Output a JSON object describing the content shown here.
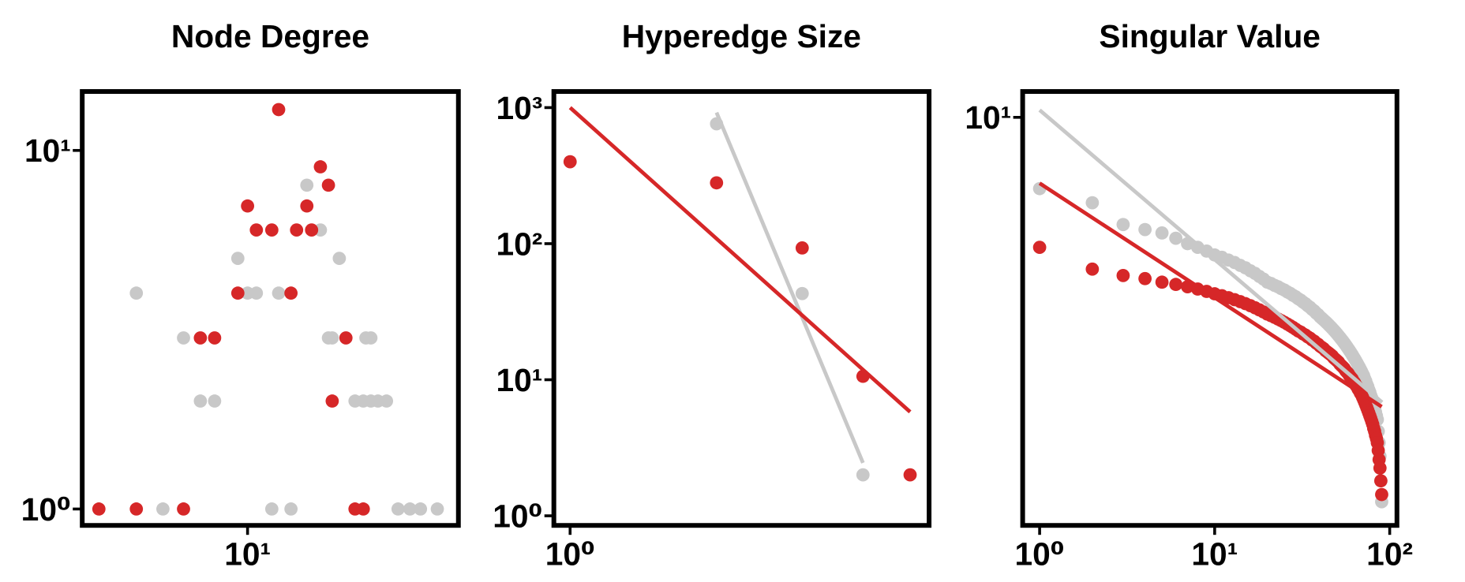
{
  "chart_data": [
    {
      "type": "scatter",
      "title": "Node Degree",
      "log_x": true,
      "log_y": true,
      "xlim": [
        1.67,
        98
      ],
      "ylim": [
        0.9,
        14.6
      ],
      "xticks": [
        {
          "value": 10,
          "label": "10¹"
        }
      ],
      "yticks": [
        {
          "value": 1,
          "label": "10⁰"
        },
        {
          "value": 10,
          "label": "10¹"
        }
      ],
      "series": [
        {
          "style": "marker",
          "color": "#c8c8c8",
          "x": [
            3,
            4,
            5,
            6,
            7,
            9,
            10,
            11,
            13,
            16,
            14,
            19,
            22,
            24,
            25,
            27,
            32,
            35,
            36,
            38,
            38,
            41,
            45,
            51,
            58,
            65,
            78
          ],
          "values": [
            4,
            1,
            3,
            2,
            2,
            5,
            4,
            4,
            1,
            1,
            4,
            8,
            6,
            3,
            3,
            5,
            2,
            2,
            3,
            3,
            2,
            2,
            2,
            1,
            1,
            1,
            1
          ]
        },
        {
          "style": "marker",
          "color": "#d62728",
          "x": [
            2,
            3,
            5,
            6,
            7,
            9,
            10,
            11,
            13,
            14,
            16,
            17,
            19,
            20,
            22,
            24,
            25,
            29,
            32,
            35
          ],
          "values": [
            1,
            1,
            1,
            3,
            3,
            4,
            7,
            6,
            6,
            13,
            4,
            6,
            7,
            6,
            9,
            8,
            2,
            3,
            1,
            1
          ]
        }
      ]
    },
    {
      "type": "scatter",
      "title": "Hyperedge Size",
      "log_x": true,
      "log_y": true,
      "xlim": [
        0.926,
        5.47
      ],
      "ylim": [
        0.85,
        1313
      ],
      "xticks": [
        {
          "value": 1,
          "label": "10⁰"
        }
      ],
      "yticks": [
        {
          "value": 1,
          "label": "10⁰"
        },
        {
          "value": 10,
          "label": "10¹"
        },
        {
          "value": 100,
          "label": "10²"
        },
        {
          "value": 1000,
          "label": "10³"
        }
      ],
      "series": [
        {
          "style": "line",
          "color": "#c8c8c8",
          "x": [
            2,
            4
          ],
          "values": [
            920,
            2.45
          ]
        },
        {
          "style": "marker",
          "color": "#c8c8c8",
          "x": [
            2,
            3,
            4
          ],
          "values": [
            760,
            43,
            2
          ]
        },
        {
          "style": "line",
          "color": "#d62728",
          "x": [
            1,
            5
          ],
          "values": [
            1000,
            5.8
          ]
        },
        {
          "style": "marker",
          "color": "#d62728",
          "x": [
            1,
            2,
            3,
            4,
            5
          ],
          "values": [
            400,
            280,
            93,
            10.6,
            2
          ]
        }
      ]
    },
    {
      "type": "scatter",
      "title": "Singular Value",
      "log_x": true,
      "log_y": true,
      "xlim": [
        0.8,
        110
      ],
      "ylim": [
        1.1,
        11.5
      ],
      "xticks": [
        {
          "value": 1,
          "label": "10⁰"
        },
        {
          "value": 10,
          "label": "10¹"
        },
        {
          "value": 100,
          "label": "10²"
        }
      ],
      "yticks": [
        {
          "value": 10,
          "label": "10¹"
        }
      ],
      "series": [
        {
          "style": "marker",
          "color": "#c8c8c8",
          "x": [
            1,
            2,
            3,
            4,
            5,
            6,
            7,
            8,
            9,
            10,
            11,
            12,
            13,
            14,
            15,
            16,
            17,
            18,
            19,
            20,
            21,
            22,
            23,
            24,
            25,
            26,
            27,
            28,
            29,
            30,
            31,
            32,
            33,
            34,
            35,
            36,
            37,
            38,
            39,
            40,
            41,
            42,
            43,
            44,
            45,
            46,
            47,
            48,
            49,
            50,
            51,
            52,
            53,
            54,
            55,
            56,
            57,
            58,
            59,
            60,
            61,
            62,
            63,
            64,
            65,
            66,
            67,
            68,
            69,
            70,
            71,
            72,
            73,
            74,
            75,
            76,
            77,
            78,
            79,
            80,
            81,
            82,
            83,
            84,
            85,
            86,
            87,
            88,
            89,
            90
          ],
          "values": [
            6.8,
            6.3,
            5.6,
            5.45,
            5.35,
            5.2,
            5.05,
            4.95,
            4.85,
            4.75,
            4.69,
            4.62,
            4.56,
            4.49,
            4.43,
            4.36,
            4.3,
            4.23,
            4.17,
            4.1,
            4.07,
            4.03,
            4.0,
            3.96,
            3.93,
            3.89,
            3.86,
            3.82,
            3.79,
            3.75,
            3.72,
            3.68,
            3.65,
            3.61,
            3.58,
            3.54,
            3.51,
            3.47,
            3.44,
            3.4,
            3.37,
            3.34,
            3.31,
            3.28,
            3.25,
            3.22,
            3.19,
            3.16,
            3.13,
            3.1,
            3.07,
            3.04,
            3.01,
            2.98,
            2.95,
            2.92,
            2.89,
            2.86,
            2.83,
            2.8,
            2.77,
            2.74,
            2.71,
            2.68,
            2.65,
            2.62,
            2.59,
            2.56,
            2.53,
            2.5,
            2.47,
            2.43,
            2.4,
            2.36,
            2.33,
            2.29,
            2.26,
            2.22,
            2.19,
            2.15,
            2.11,
            2.07,
            2.03,
            1.99,
            1.95,
            1.83,
            1.72,
            1.6,
            1.4,
            1.25
          ]
        },
        {
          "style": "marker",
          "color": "#d62728",
          "x": [
            1,
            2,
            3,
            4,
            5,
            6,
            7,
            8,
            9,
            10,
            11,
            12,
            13,
            14,
            15,
            16,
            17,
            18,
            19,
            20,
            21,
            22,
            23,
            24,
            25,
            26,
            27,
            28,
            29,
            30,
            31,
            32,
            33,
            34,
            35,
            36,
            37,
            38,
            39,
            40,
            41,
            42,
            43,
            44,
            45,
            46,
            47,
            48,
            49,
            50,
            51,
            52,
            53,
            54,
            55,
            56,
            57,
            58,
            59,
            60,
            61,
            62,
            63,
            64,
            65,
            66,
            67,
            68,
            69,
            70,
            71,
            72,
            73,
            74,
            75,
            76,
            77,
            78,
            79,
            80,
            81,
            82,
            83,
            84,
            85,
            86,
            87,
            88,
            89,
            90
          ],
          "values": [
            4.95,
            4.4,
            4.25,
            4.18,
            4.1,
            4.05,
            4.0,
            3.95,
            3.9,
            3.85,
            3.81,
            3.77,
            3.73,
            3.69,
            3.65,
            3.61,
            3.57,
            3.53,
            3.49,
            3.45,
            3.42,
            3.39,
            3.36,
            3.33,
            3.3,
            3.27,
            3.24,
            3.21,
            3.18,
            3.15,
            3.13,
            3.1,
            3.08,
            3.05,
            3.03,
            3.0,
            2.98,
            2.95,
            2.93,
            2.9,
            2.88,
            2.86,
            2.83,
            2.81,
            2.79,
            2.77,
            2.75,
            2.72,
            2.7,
            2.68,
            2.66,
            2.63,
            2.61,
            2.59,
            2.57,
            2.54,
            2.52,
            2.5,
            2.47,
            2.45,
            2.43,
            2.4,
            2.38,
            2.35,
            2.33,
            2.3,
            2.28,
            2.25,
            2.23,
            2.2,
            2.17,
            2.14,
            2.11,
            2.08,
            2.05,
            2.02,
            1.99,
            1.96,
            1.93,
            1.9,
            1.86,
            1.83,
            1.79,
            1.76,
            1.72,
            1.65,
            1.57,
            1.5,
            1.4,
            1.3
          ]
        },
        {
          "style": "line",
          "color": "#c8c8c8",
          "x": [
            1,
            90.5
          ],
          "values": [
            10.4,
            2.14
          ]
        },
        {
          "style": "line",
          "color": "#d62728",
          "x": [
            1,
            90
          ],
          "values": [
            7.0,
            2.09
          ]
        }
      ]
    }
  ]
}
